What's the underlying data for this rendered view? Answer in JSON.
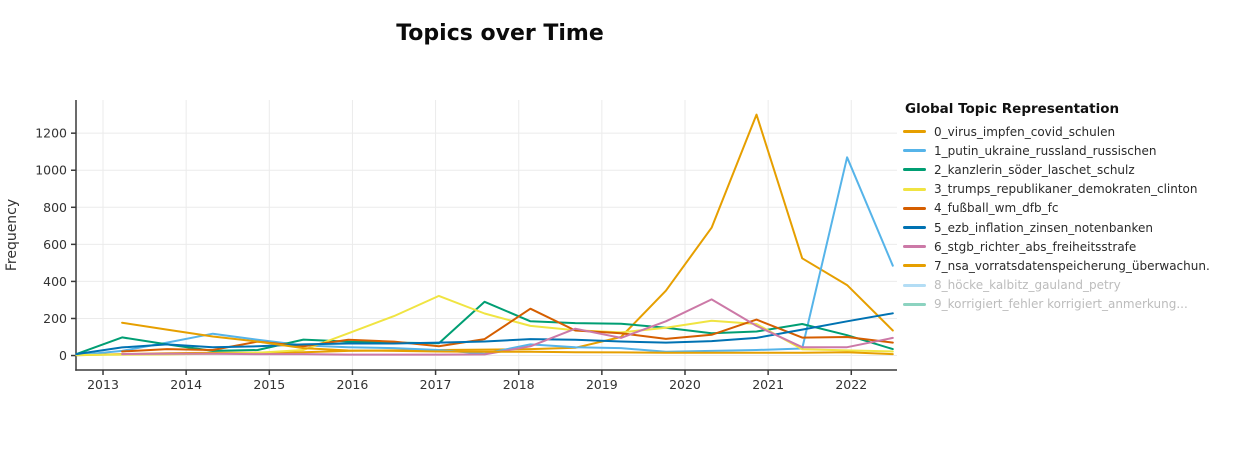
{
  "title": "Topics over Time",
  "y_axis": {
    "label": "Frequency",
    "ticks": [
      0,
      200,
      400,
      600,
      800,
      1000,
      1200
    ]
  },
  "x_axis": {
    "ticks": [
      2013,
      2014,
      2015,
      2016,
      2017,
      2018,
      2019,
      2020,
      2021,
      2022
    ]
  },
  "legend": {
    "title": "Global Topic Representation"
  },
  "colors": {
    "grid": "#ebebeb",
    "axis_line": "#3a3a3a",
    "tick_text": "#333333",
    "disabled_text": "#bcbcbc",
    "background": "#ffffff"
  },
  "chart_data": {
    "type": "line",
    "title": "Topics over Time",
    "xlabel": "",
    "ylabel": "Frequency",
    "xlim": [
      2012.675,
      2022.55
    ],
    "ylim": [
      -78,
      1379
    ],
    "grid": true,
    "legend_position": "right",
    "x": [
      2012.68,
      2013.23,
      2013.77,
      2014.32,
      2014.86,
      2015.41,
      2015.95,
      2016.5,
      2017.04,
      2017.59,
      2018.14,
      2018.68,
      2019.23,
      2019.77,
      2020.32,
      2020.86,
      2021.41,
      2021.95,
      2022.5
    ],
    "series": [
      {
        "name": "0_virus_impfen_covid_schulen",
        "color": "#E69F00",
        "hidden": false,
        "values": [
          2,
          8,
          12,
          15,
          15,
          18,
          25,
          28,
          30,
          32,
          35,
          42,
          100,
          350,
          690,
          1300,
          525,
          380,
          135
        ]
      },
      {
        "name": "1_putin_ukraine_russland_russischen",
        "color": "#56B4E9",
        "hidden": false,
        "values": [
          2,
          25,
          70,
          118,
          85,
          55,
          45,
          40,
          30,
          10,
          60,
          45,
          40,
          20,
          25,
          30,
          38,
          1070,
          485
        ]
      },
      {
        "name": "2_kanzlerin_söder_laschet_schulz",
        "color": "#009E73",
        "hidden": false,
        "values": [
          8,
          98,
          60,
          25,
          30,
          86,
          75,
          70,
          66,
          290,
          185,
          175,
          172,
          150,
          120,
          130,
          170,
          110,
          35
        ]
      },
      {
        "name": "3_trumps_republikaner_demokraten_clinton",
        "color": "#F0E442",
        "hidden": false,
        "values": [
          3,
          5,
          6,
          10,
          15,
          30,
          120,
          213,
          322,
          227,
          160,
          137,
          125,
          150,
          188,
          170,
          34,
          28,
          22
        ]
      },
      {
        "name": "4_fußball_wm_dfb_fc",
        "color": "#D55E00",
        "hidden": false,
        "values": [
          null,
          22,
          35,
          30,
          75,
          50,
          85,
          75,
          50,
          89,
          253,
          135,
          120,
          90,
          112,
          194,
          97,
          100,
          70
        ]
      },
      {
        "name": "5_ezb_inflation_zinsen_notenbanken",
        "color": "#0072B2",
        "hidden": false,
        "values": [
          8,
          44,
          60,
          45,
          50,
          60,
          65,
          65,
          70,
          76,
          89,
          85,
          76,
          70,
          78,
          95,
          140,
          185,
          228
        ]
      },
      {
        "name": "6_stgb_richter_abs_freiheitsstrafe",
        "color": "#CC79A7",
        "hidden": false,
        "values": [
          null,
          8,
          10,
          10,
          8,
          8,
          5,
          5,
          5,
          6,
          50,
          145,
          95,
          185,
          303,
          160,
          45,
          45,
          95
        ]
      },
      {
        "name": "7_nsa_vorratsdatenspeicherung_überwachun.",
        "color": "#E69F00",
        "hidden": false,
        "values": [
          null,
          177,
          140,
          103,
          75,
          40,
          27,
          25,
          22,
          20,
          20,
          18,
          17,
          15,
          15,
          15,
          15,
          18,
          8
        ]
      },
      {
        "name": "8_höcke_kalbitz_gauland_petry",
        "color": "#56B4E9",
        "hidden": true,
        "values": []
      },
      {
        "name": "9_korrigiert_fehler korrigiert_anmerkung...",
        "color": "#009E73",
        "hidden": true,
        "values": []
      }
    ]
  }
}
